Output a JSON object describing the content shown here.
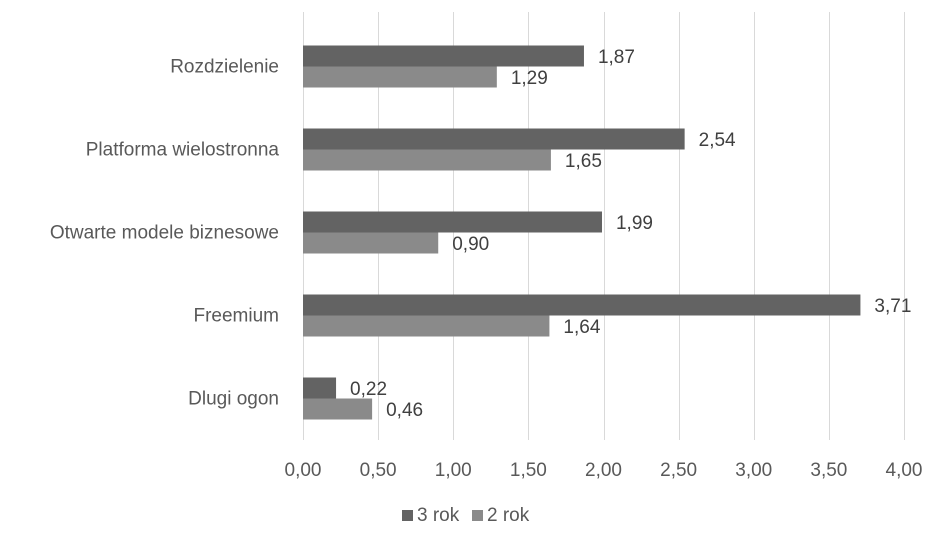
{
  "chart_data": {
    "type": "bar",
    "orientation": "horizontal",
    "categories": [
      "Rozdzielenie",
      "Platforma wielostronna",
      "Otwarte modele biznesowe",
      "Freemium",
      "Dlugi ogon"
    ],
    "series": [
      {
        "name": "3 rok",
        "values": [
          1.87,
          2.54,
          1.99,
          3.71,
          0.22
        ],
        "value_labels": [
          "1,87",
          "2,54",
          "1,99",
          "3,71",
          "0,22"
        ],
        "color": "#636363"
      },
      {
        "name": "2 rok",
        "values": [
          1.29,
          1.65,
          0.9,
          1.64,
          0.46
        ],
        "value_labels": [
          "1,29",
          "1,65",
          "0,90",
          "1,64",
          "0,46"
        ],
        "color": "#8a8a8a"
      }
    ],
    "title": "",
    "xlabel": "",
    "ylabel": "",
    "xlim": [
      0,
      4
    ],
    "xticks": [
      0,
      0.5,
      1,
      1.5,
      2,
      2.5,
      3,
      3.5,
      4
    ],
    "xtick_labels": [
      "0,00",
      "0,50",
      "1,00",
      "1,50",
      "2,00",
      "2,50",
      "3,00",
      "3,50",
      "4,00"
    ],
    "grid": "vertical",
    "legend": "bottom"
  }
}
